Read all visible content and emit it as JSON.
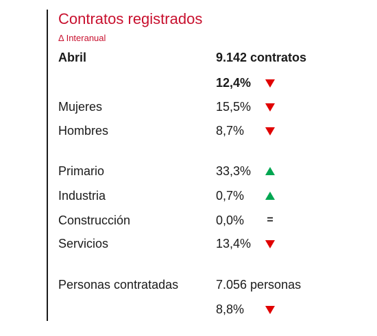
{
  "title": "Contratos registrados",
  "subtitle": "Δ Interanual",
  "month": {
    "label": "Abril",
    "value": "9.142 contratos"
  },
  "total_change": {
    "value": "12,4%",
    "trend": "down"
  },
  "gender": [
    {
      "label": "Mujeres",
      "value": "15,5%",
      "trend": "down"
    },
    {
      "label": "Hombres",
      "value": "8,7%",
      "trend": "down"
    }
  ],
  "sectors": [
    {
      "label": "Primario",
      "value": "33,3%",
      "trend": "up"
    },
    {
      "label": "Industria",
      "value": "0,7%",
      "trend": "up"
    },
    {
      "label": "Construcción",
      "value": "0,0%",
      "trend": "equal",
      "symbol": "="
    },
    {
      "label": "Servicios",
      "value": "13,4%",
      "trend": "down"
    }
  ],
  "persons": {
    "label": "Personas contratadas",
    "value": "7.056 personas"
  },
  "persons_change": {
    "value": "8,8%",
    "trend": "down"
  },
  "colors": {
    "accent": "#c8102e",
    "down": "#e00000",
    "up": "#00a651",
    "text": "#1a1a1a"
  }
}
